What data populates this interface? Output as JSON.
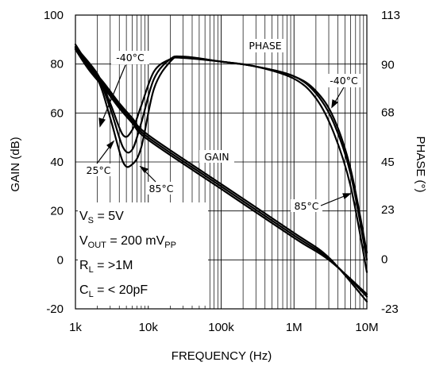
{
  "chart_data": {
    "type": "line",
    "xlabel": "FREQUENCY (Hz)",
    "ylabel": "GAIN (dB)",
    "y2label": "PHASE (°)",
    "xscale": "log",
    "xlim": [
      1000,
      10000000
    ],
    "ylim": [
      -20,
      100
    ],
    "y2lim": [
      -23,
      113
    ],
    "grid": true,
    "x_ticks": [
      {
        "v": 1000,
        "label": "1k"
      },
      {
        "v": 10000,
        "label": "10k"
      },
      {
        "v": 100000,
        "label": "100k"
      },
      {
        "v": 1000000,
        "label": "1M"
      },
      {
        "v": 10000000,
        "label": "10M"
      }
    ],
    "y_ticks": [
      -20,
      0,
      20,
      40,
      60,
      80,
      100
    ],
    "y2_ticks": [
      -23,
      0,
      23,
      45,
      68,
      90,
      113
    ],
    "annotations": {
      "phase": "PHASE",
      "gain": "GAIN",
      "m40_left": "-40°C",
      "t25": "25°C",
      "t85_left": "85°C",
      "m40_right": "-40°C",
      "t85_right": "85°C"
    },
    "conditions": {
      "vs_main": "V",
      "vs_sub": "S",
      "vs_rest": " = 5V",
      "vout_main": "V",
      "vout_sub": "OUT",
      "vout_mid": " = 200 mV",
      "vout_sub2": "PP",
      "rl_main": "R",
      "rl_sub": "L",
      "rl_rest": " = >1M",
      "cl_main": "C",
      "cl_sub": "L",
      "cl_rest": " = < 20pF"
    },
    "series": [
      {
        "axis": "left",
        "points": [
          [
            1000,
            86
          ],
          [
            1500,
            78
          ],
          [
            2500,
            70
          ],
          [
            4000,
            62
          ],
          [
            6000,
            56
          ],
          [
            10000,
            49
          ],
          [
            100000,
            29
          ],
          [
            1000000,
            9
          ],
          [
            3000000,
            0
          ],
          [
            10000000,
            -14
          ]
        ]
      },
      {
        "axis": "left",
        "points": [
          [
            1000,
            87
          ],
          [
            1500,
            79
          ],
          [
            2500,
            71
          ],
          [
            4000,
            63
          ],
          [
            6000,
            57
          ],
          [
            10000,
            50
          ],
          [
            100000,
            30
          ],
          [
            1000000,
            10
          ],
          [
            3000000,
            0.5
          ],
          [
            10000000,
            -15
          ]
        ]
      },
      {
        "axis": "left",
        "points": [
          [
            1000,
            88
          ],
          [
            1500,
            80
          ],
          [
            2500,
            72
          ],
          [
            4000,
            64
          ],
          [
            6000,
            58
          ],
          [
            10000,
            51
          ],
          [
            100000,
            31
          ],
          [
            1000000,
            11
          ],
          [
            3000000,
            1
          ],
          [
            10000000,
            -17
          ]
        ]
      },
      {
        "axis": "left",
        "points": [
          [
            1000,
            87
          ],
          [
            2000,
            76
          ],
          [
            3000,
            64
          ],
          [
            4500,
            51
          ],
          [
            6000,
            53
          ],
          [
            8000,
            63
          ],
          [
            12000,
            77
          ],
          [
            20000,
            82
          ],
          [
            30000,
            82.5
          ],
          [
            100000,
            81
          ],
          [
            300000,
            79
          ],
          [
            1000000,
            75
          ],
          [
            2000000,
            69
          ],
          [
            3500000,
            58
          ],
          [
            6000000,
            37
          ],
          [
            10000000,
            3
          ]
        ]
      },
      {
        "axis": "left",
        "points": [
          [
            1000,
            86.5
          ],
          [
            2000,
            75
          ],
          [
            3000,
            62
          ],
          [
            4500,
            46
          ],
          [
            6000,
            45
          ],
          [
            8000,
            56
          ],
          [
            12000,
            74
          ],
          [
            20000,
            82
          ],
          [
            30000,
            83
          ],
          [
            100000,
            81
          ],
          [
            300000,
            79
          ],
          [
            1000000,
            75
          ],
          [
            2000000,
            68
          ],
          [
            3500000,
            56
          ],
          [
            6000000,
            35
          ],
          [
            10000000,
            0
          ]
        ]
      },
      {
        "axis": "left",
        "points": [
          [
            1000,
            86
          ],
          [
            2000,
            74
          ],
          [
            3000,
            58
          ],
          [
            4500,
            40
          ],
          [
            6000,
            39
          ],
          [
            8000,
            46
          ],
          [
            12000,
            70
          ],
          [
            20000,
            81
          ],
          [
            30000,
            83
          ],
          [
            100000,
            81
          ],
          [
            300000,
            79
          ],
          [
            1000000,
            74
          ],
          [
            2000000,
            66
          ],
          [
            3500000,
            52
          ],
          [
            6000000,
            30
          ],
          [
            10000000,
            -5
          ]
        ]
      }
    ]
  }
}
